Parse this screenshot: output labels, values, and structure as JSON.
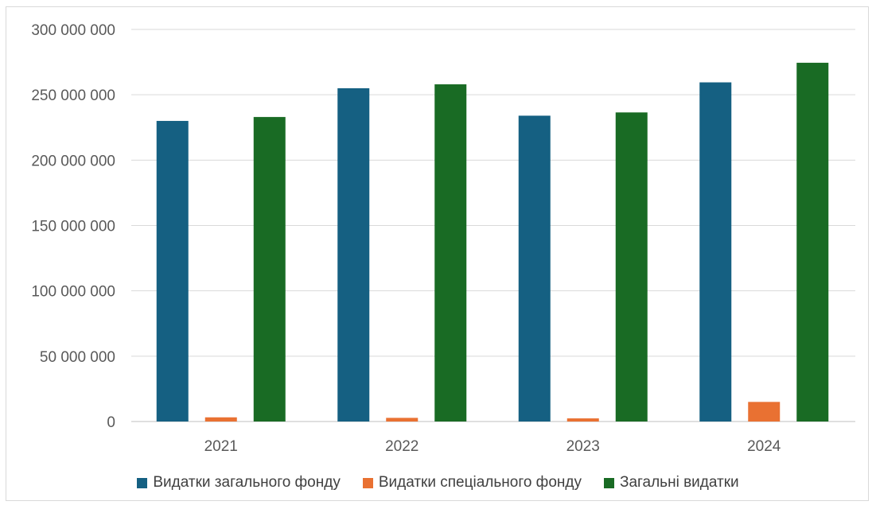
{
  "chart_data": {
    "type": "bar",
    "categories": [
      "2021",
      "2022",
      "2023",
      "2024"
    ],
    "series": [
      {
        "name": "Видатки загального фонду",
        "color": "#156082",
        "values": [
          230000000,
          255000000,
          234000000,
          259500000
        ]
      },
      {
        "name": "Видатки спеціального фонду",
        "color": "#e97132",
        "values": [
          3200000,
          2800000,
          2400000,
          15000000
        ]
      },
      {
        "name": "Загальні видатки",
        "color": "#196b24",
        "values": [
          233000000,
          258000000,
          236500000,
          274500000
        ]
      }
    ],
    "yticks": [
      "0",
      "50 000 000",
      "100 000 000",
      "150 000 000",
      "200 000 000",
      "250 000 000",
      "300 000 000"
    ],
    "ylim": [
      0,
      300000000
    ],
    "grid": true,
    "legend_position": "bottom"
  }
}
